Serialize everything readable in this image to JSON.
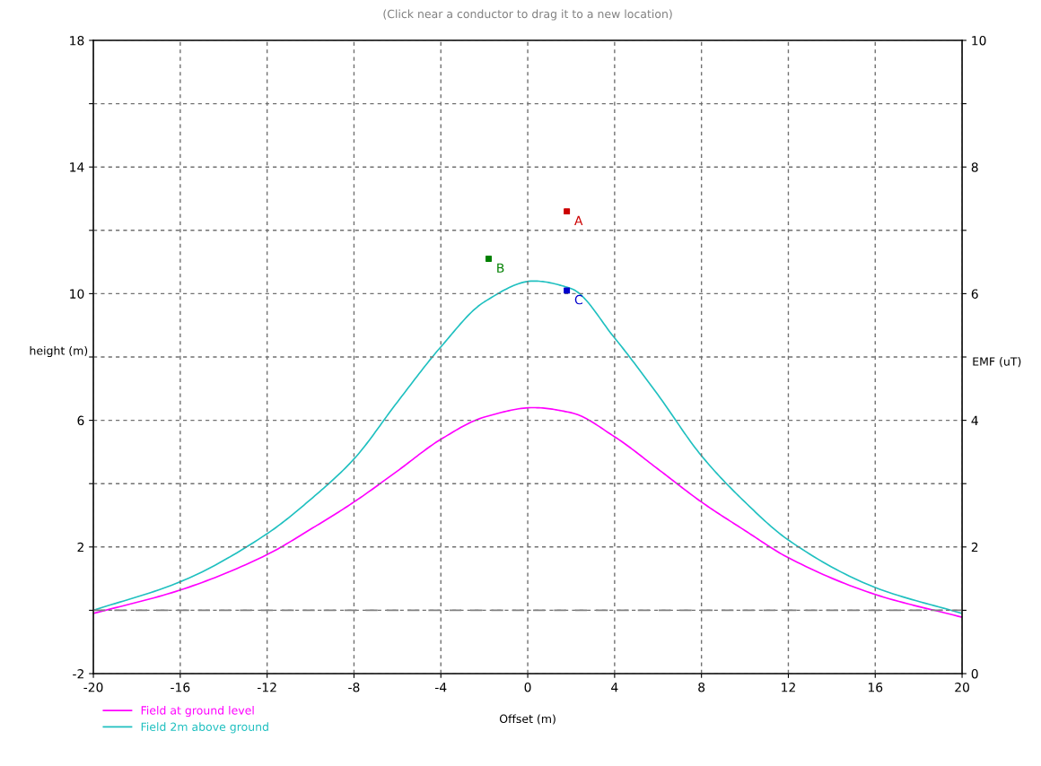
{
  "chart_data": {
    "type": "line",
    "title": "(Click near a conductor to drag it to a new location)",
    "xlabel": "Offset (m)",
    "ylabel": "height (m)",
    "y2label": "EMF (uT)",
    "xlim": [
      -20,
      20
    ],
    "xticks": [
      -20,
      -16,
      -12,
      -8,
      -4,
      0,
      4,
      8,
      12,
      16,
      20
    ],
    "ylim": [
      -2,
      18
    ],
    "yticks": [
      -2,
      {
        "value": 0,
        "label": null
      },
      2,
      {
        "value": 4,
        "label": null
      },
      6,
      {
        "value": 8,
        "label": null
      },
      10,
      {
        "value": 12,
        "label": null
      },
      14,
      {
        "value": 16,
        "label": null
      },
      18
    ],
    "y2lim": [
      0,
      10
    ],
    "y2ticks": [
      0,
      {
        "value": 1,
        "label": null
      },
      2,
      {
        "value": 3,
        "label": null
      },
      4,
      {
        "value": 5,
        "label": null
      },
      6,
      {
        "value": 7,
        "label": null
      },
      8,
      {
        "value": 9,
        "label": null
      },
      10
    ],
    "grid": true,
    "legend": "bottom left",
    "ref_lines": [
      {
        "axis": "y",
        "value": 0,
        "color": "#808080",
        "line_style": "dashed"
      }
    ],
    "series": [
      {
        "name": "Field at ground level",
        "axis": "y2",
        "color": "#ff00ff",
        "x": [
          -20,
          -16,
          -12,
          -10,
          -8,
          -6,
          -4,
          -2,
          0.26,
          2,
          4,
          6,
          8,
          10,
          12,
          16,
          20
        ],
        "values": [
          0.95,
          1.32,
          1.88,
          2.28,
          2.71,
          3.2,
          3.7,
          4.05,
          4.2,
          4.12,
          3.74,
          3.23,
          2.71,
          2.26,
          1.83,
          1.25,
          0.89
        ]
      },
      {
        "name": "Field 2m above ground",
        "axis": "y2",
        "color": "#20c0c0",
        "x": [
          -20,
          -16,
          -12,
          -10,
          -8,
          -6,
          -4,
          -2,
          0.26,
          2,
          4,
          6,
          8,
          10,
          12,
          16,
          20
        ],
        "values": [
          1.0,
          1.45,
          2.21,
          2.75,
          3.39,
          4.29,
          5.16,
          5.87,
          6.2,
          6.08,
          5.3,
          4.4,
          3.44,
          2.71,
          2.11,
          1.36,
          0.95
        ]
      },
      {
        "name": "A",
        "type": "scatter",
        "color": "#cc0000",
        "marker": "square",
        "x": [
          1.8
        ],
        "values": [
          12.6
        ]
      },
      {
        "name": "B",
        "type": "scatter",
        "color": "#008000",
        "marker": "square",
        "x": [
          -1.8
        ],
        "values": [
          11.1
        ]
      },
      {
        "name": "C",
        "type": "scatter",
        "color": "#0000cc",
        "marker": "square",
        "x": [
          1.8
        ],
        "values": [
          10.1
        ]
      }
    ]
  }
}
